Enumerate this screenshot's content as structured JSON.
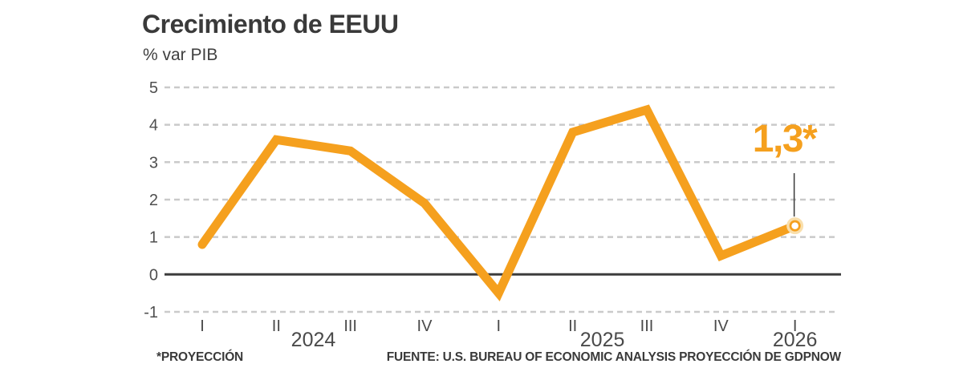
{
  "header": {
    "title": "Crecimiento de EEUU",
    "subtitle": "% var PIB"
  },
  "footer": {
    "note": "*PROYECCIÓN",
    "source": "FUENTE: U.S. BUREAU OF ECONOMIC ANALYSIS PROYECCIÓN DE GDPNOW"
  },
  "chart_data": {
    "type": "line",
    "title": "Crecimiento de EEUU",
    "ylabel": "% var PIB",
    "categories": [
      "I",
      "II",
      "III",
      "IV",
      "I",
      "II",
      "III",
      "IV",
      "I"
    ],
    "year_groups": [
      {
        "label": "2024",
        "center_index": 1.5
      },
      {
        "label": "2025",
        "center_index": 5.4
      },
      {
        "label": "2026",
        "center_index": 8
      }
    ],
    "values": [
      0.8,
      3.6,
      3.3,
      1.9,
      -0.5,
      3.8,
      4.4,
      0.5,
      1.3
    ],
    "yticks": [
      5,
      4,
      3,
      2,
      1,
      0,
      -1
    ],
    "ylim": [
      -1,
      5
    ],
    "grid": "horizontal-dashed",
    "legend": "none",
    "annotation": {
      "label": "1,3*",
      "point_index": 8,
      "value": 1.3
    },
    "colors": {
      "line": "#f5a01e",
      "marker_fill": "#ffffff",
      "marker_ring": "#f5a01e",
      "marker_halo": "#f9dfac",
      "grid": "#cacaca",
      "zero_line": "#3c3c3c",
      "connector": "#3a3a3a",
      "text": "#3a3a3a",
      "axis_text": "#4a4a4a"
    }
  }
}
